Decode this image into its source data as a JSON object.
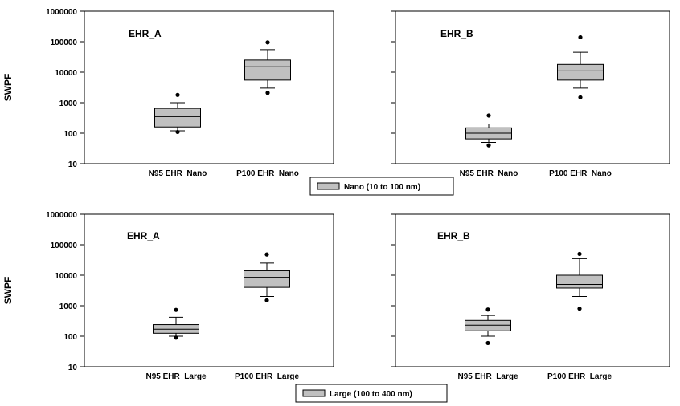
{
  "legends": [
    {
      "label": "Nano (10 to 100 nm)",
      "color": "#c0c0c0"
    },
    {
      "label": "Large (100 to 400 nm)",
      "color": "#c0c0c0"
    }
  ],
  "chart_data": [
    {
      "type": "box",
      "title": "EHR_A",
      "ylabel": "SWPF",
      "yscale": "log",
      "ylim": [
        10,
        1000000
      ],
      "yticks": [
        "10",
        "100",
        "1000",
        "10000",
        "100000",
        "1000000"
      ],
      "categories": [
        "N95 EHR_Nano",
        "P100 EHR_Nano"
      ],
      "boxes": [
        {
          "whisker_low": 120,
          "q1": 160,
          "median": 350,
          "q3": 650,
          "whisker_high": 1000,
          "outliers": [
            110,
            1800
          ]
        },
        {
          "whisker_low": 3000,
          "q1": 5500,
          "median": 15000,
          "q3": 25000,
          "whisker_high": 55000,
          "outliers": [
            2100,
            95000
          ]
        }
      ]
    },
    {
      "type": "box",
      "title": "EHR_B",
      "ylabel": "",
      "yscale": "log",
      "ylim": [
        10,
        1000000
      ],
      "yticks": [
        "10",
        "100",
        "1000",
        "10000",
        "100000",
        "1000000"
      ],
      "categories": [
        "N95 EHR_Nano",
        "P100 EHR_Nano"
      ],
      "boxes": [
        {
          "whisker_low": 50,
          "q1": 65,
          "median": 100,
          "q3": 150,
          "whisker_high": 200,
          "outliers": [
            40,
            380
          ]
        },
        {
          "whisker_low": 3000,
          "q1": 5500,
          "median": 11000,
          "q3": 18000,
          "whisker_high": 45000,
          "outliers": [
            1500,
            140000
          ]
        }
      ]
    },
    {
      "type": "box",
      "title": "EHR_A",
      "ylabel": "SWPF",
      "yscale": "log",
      "ylim": [
        10,
        1000000
      ],
      "yticks": [
        "10",
        "100",
        "1000",
        "10000",
        "100000",
        "1000000"
      ],
      "categories": [
        "N95 EHR_Large",
        "P100 EHR_Large"
      ],
      "boxes": [
        {
          "whisker_low": 100,
          "q1": 125,
          "median": 170,
          "q3": 240,
          "whisker_high": 420,
          "outliers": [
            90,
            730
          ]
        },
        {
          "whisker_low": 2000,
          "q1": 4000,
          "median": 8500,
          "q3": 14000,
          "whisker_high": 25000,
          "outliers": [
            1500,
            48000
          ]
        }
      ]
    },
    {
      "type": "box",
      "title": "EHR_B",
      "ylabel": "",
      "yscale": "log",
      "ylim": [
        10,
        1000000
      ],
      "yticks": [
        "10",
        "100",
        "1000",
        "10000",
        "100000",
        "1000000"
      ],
      "categories": [
        "N95 EHR_Large",
        "P100 EHR_Large"
      ],
      "boxes": [
        {
          "whisker_low": 100,
          "q1": 150,
          "median": 230,
          "q3": 330,
          "whisker_high": 480,
          "outliers": [
            60,
            750
          ]
        },
        {
          "whisker_low": 2000,
          "q1": 3800,
          "median": 5000,
          "q3": 10000,
          "whisker_high": 35000,
          "outliers": [
            800,
            50000
          ]
        }
      ]
    }
  ]
}
